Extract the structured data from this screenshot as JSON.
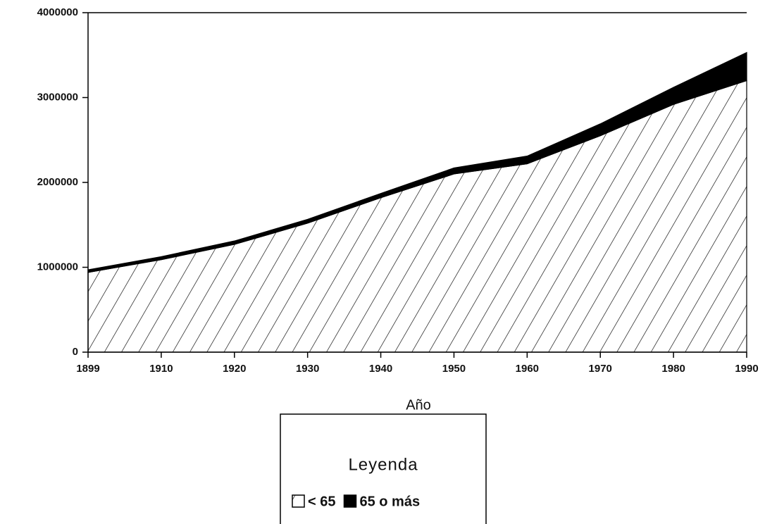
{
  "chart_data": {
    "type": "stacked_area",
    "categories": [
      "1899",
      "1910",
      "1920",
      "1930",
      "1940",
      "1950",
      "1960",
      "1970",
      "1980",
      "1990"
    ],
    "series": [
      {
        "name": "< 65",
        "color": "#000000",
        "fill": "hatch",
        "values": [
          940000,
          1090000,
          1270000,
          1520000,
          1820000,
          2100000,
          2220000,
          2550000,
          2920000,
          3200000
        ]
      },
      {
        "name": "65 o más",
        "color": "#000000",
        "fill": "solid",
        "values": [
          30000,
          35000,
          40000,
          45000,
          50000,
          70000,
          90000,
          140000,
          200000,
          330000
        ]
      }
    ],
    "xlabel": "Año",
    "legend_title": "Leyenda",
    "ylim": [
      0,
      4000000
    ],
    "yticks": [
      0,
      1000000,
      2000000,
      3000000,
      4000000
    ],
    "legend": "bottom"
  }
}
